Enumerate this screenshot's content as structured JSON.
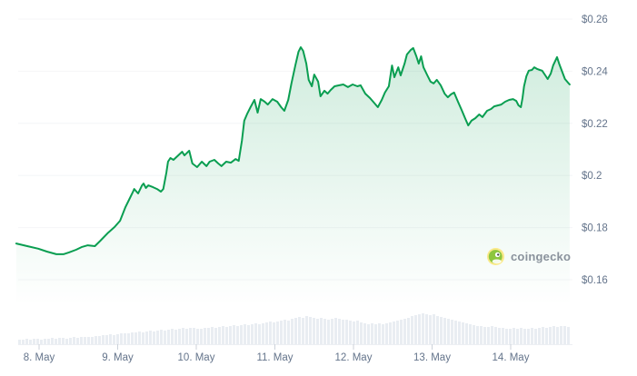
{
  "watermark": {
    "label": "coingecko"
  },
  "colors": {
    "line": "#0a9e51",
    "area_top": "rgba(10,158,81,0.20)",
    "area_bottom": "rgba(10,158,81,0.0)",
    "grid": "#f4f5f7",
    "axis_label": "#64748b",
    "volume_bar": "#e9edf2",
    "tick": "#ccd2da",
    "baseline": "#eceff3",
    "gecko_outer": "#f9e988",
    "gecko_body": "#8dc63f",
    "gecko_eye_white": "#ffffff",
    "gecko_pupil": "#404a43"
  },
  "chart_data": {
    "type": "area",
    "title": "",
    "currency": "USD",
    "legend": "none",
    "grid": "horizontal-only",
    "x_axis": {
      "tick_labels": [
        "8. May",
        "9. May",
        "10. May",
        "11. May",
        "12. May",
        "13. May",
        "14. May"
      ],
      "tick_days": [
        8,
        9,
        10,
        11,
        12,
        13,
        14
      ],
      "range_days": [
        7.71,
        14.78
      ]
    },
    "y_axis": {
      "side": "right",
      "tick_labels": [
        "$0.26",
        "$0.24",
        "$0.22",
        "$0.2",
        "$0.18",
        "$0.16"
      ],
      "tick_values": [
        0.26,
        0.24,
        0.22,
        0.2,
        0.18,
        0.16
      ],
      "range": [
        0.155,
        0.2625
      ]
    },
    "series": [
      {
        "name": "price_usd",
        "points": [
          [
            7.71,
            0.1739
          ],
          [
            7.85,
            0.1729
          ],
          [
            7.99,
            0.1719
          ],
          [
            8.1,
            0.1708
          ],
          [
            8.22,
            0.1698
          ],
          [
            8.31,
            0.1698
          ],
          [
            8.38,
            0.1705
          ],
          [
            8.47,
            0.1715
          ],
          [
            8.54,
            0.1725
          ],
          [
            8.62,
            0.1732
          ],
          [
            8.71,
            0.1729
          ],
          [
            8.78,
            0.175
          ],
          [
            8.87,
            0.1778
          ],
          [
            8.96,
            0.1802
          ],
          [
            9.03,
            0.1826
          ],
          [
            9.1,
            0.1879
          ],
          [
            9.15,
            0.191
          ],
          [
            9.19,
            0.1934
          ],
          [
            9.21,
            0.1948
          ],
          [
            9.26,
            0.1931
          ],
          [
            9.31,
            0.1962
          ],
          [
            9.33,
            0.1969
          ],
          [
            9.36,
            0.1952
          ],
          [
            9.39,
            0.1962
          ],
          [
            9.45,
            0.1955
          ],
          [
            9.5,
            0.1948
          ],
          [
            9.55,
            0.1938
          ],
          [
            9.58,
            0.1948
          ],
          [
            9.62,
            0.2011
          ],
          [
            9.64,
            0.2053
          ],
          [
            9.67,
            0.2067
          ],
          [
            9.71,
            0.206
          ],
          [
            9.76,
            0.2074
          ],
          [
            9.82,
            0.2091
          ],
          [
            9.85,
            0.2077
          ],
          [
            9.91,
            0.2095
          ],
          [
            9.95,
            0.2046
          ],
          [
            10.01,
            0.2032
          ],
          [
            10.07,
            0.2053
          ],
          [
            10.13,
            0.2036
          ],
          [
            10.17,
            0.2053
          ],
          [
            10.23,
            0.206
          ],
          [
            10.28,
            0.2046
          ],
          [
            10.32,
            0.2036
          ],
          [
            10.38,
            0.2053
          ],
          [
            10.44,
            0.2049
          ],
          [
            10.5,
            0.2063
          ],
          [
            10.54,
            0.2056
          ],
          [
            10.58,
            0.2133
          ],
          [
            10.61,
            0.221
          ],
          [
            10.65,
            0.2238
          ],
          [
            10.69,
            0.2262
          ],
          [
            10.74,
            0.229
          ],
          [
            10.78,
            0.2241
          ],
          [
            10.82,
            0.2293
          ],
          [
            10.87,
            0.2283
          ],
          [
            10.91,
            0.2272
          ],
          [
            10.97,
            0.2293
          ],
          [
            11.03,
            0.2283
          ],
          [
            11.08,
            0.2262
          ],
          [
            11.12,
            0.2248
          ],
          [
            11.17,
            0.229
          ],
          [
            11.21,
            0.2353
          ],
          [
            11.26,
            0.2422
          ],
          [
            11.3,
            0.2475
          ],
          [
            11.33,
            0.2492
          ],
          [
            11.36,
            0.2478
          ],
          [
            11.4,
            0.2429
          ],
          [
            11.43,
            0.2367
          ],
          [
            11.47,
            0.2342
          ],
          [
            11.5,
            0.2387
          ],
          [
            11.55,
            0.236
          ],
          [
            11.58,
            0.2304
          ],
          [
            11.63,
            0.2325
          ],
          [
            11.67,
            0.2314
          ],
          [
            11.71,
            0.2328
          ],
          [
            11.76,
            0.2342
          ],
          [
            11.82,
            0.2346
          ],
          [
            11.87,
            0.2349
          ],
          [
            11.93,
            0.2339
          ],
          [
            11.99,
            0.2349
          ],
          [
            12.05,
            0.2342
          ],
          [
            12.09,
            0.2346
          ],
          [
            12.15,
            0.2314
          ],
          [
            12.21,
            0.2297
          ],
          [
            12.27,
            0.2276
          ],
          [
            12.31,
            0.2262
          ],
          [
            12.36,
            0.229
          ],
          [
            12.4,
            0.2318
          ],
          [
            12.45,
            0.2342
          ],
          [
            12.49,
            0.2422
          ],
          [
            12.52,
            0.2377
          ],
          [
            12.57,
            0.2415
          ],
          [
            12.6,
            0.2384
          ],
          [
            12.65,
            0.2429
          ],
          [
            12.68,
            0.2464
          ],
          [
            12.73,
            0.2482
          ],
          [
            12.76,
            0.2489
          ],
          [
            12.8,
            0.2457
          ],
          [
            12.83,
            0.2429
          ],
          [
            12.86,
            0.2457
          ],
          [
            12.89,
            0.2415
          ],
          [
            12.94,
            0.2384
          ],
          [
            12.98,
            0.236
          ],
          [
            13.02,
            0.2353
          ],
          [
            13.06,
            0.2367
          ],
          [
            13.11,
            0.2346
          ],
          [
            13.16,
            0.2314
          ],
          [
            13.2,
            0.23
          ],
          [
            13.24,
            0.2311
          ],
          [
            13.28,
            0.2318
          ],
          [
            13.33,
            0.2283
          ],
          [
            13.38,
            0.2248
          ],
          [
            13.42,
            0.222
          ],
          [
            13.46,
            0.2192
          ],
          [
            13.5,
            0.221
          ],
          [
            13.55,
            0.222
          ],
          [
            13.6,
            0.2234
          ],
          [
            13.64,
            0.2224
          ],
          [
            13.7,
            0.2248
          ],
          [
            13.75,
            0.2255
          ],
          [
            13.79,
            0.2265
          ],
          [
            13.84,
            0.2269
          ],
          [
            13.88,
            0.2272
          ],
          [
            13.93,
            0.2283
          ],
          [
            13.98,
            0.229
          ],
          [
            14.03,
            0.2293
          ],
          [
            14.07,
            0.2286
          ],
          [
            14.1,
            0.2269
          ],
          [
            14.13,
            0.2262
          ],
          [
            14.15,
            0.2297
          ],
          [
            14.17,
            0.2342
          ],
          [
            14.2,
            0.2381
          ],
          [
            14.23,
            0.2402
          ],
          [
            14.27,
            0.2405
          ],
          [
            14.3,
            0.2415
          ],
          [
            14.34,
            0.2408
          ],
          [
            14.37,
            0.2405
          ],
          [
            14.4,
            0.2402
          ],
          [
            14.44,
            0.2384
          ],
          [
            14.47,
            0.237
          ],
          [
            14.51,
            0.2391
          ],
          [
            14.54,
            0.2422
          ],
          [
            14.59,
            0.2454
          ],
          [
            14.62,
            0.2426
          ],
          [
            14.66,
            0.2394
          ],
          [
            14.69,
            0.237
          ],
          [
            14.73,
            0.2356
          ],
          [
            14.75,
            0.2349
          ]
        ]
      }
    ],
    "volume_series": {
      "name": "volume",
      "unit": "relative",
      "values": [
        5,
        5,
        6,
        5,
        6,
        6,
        5,
        6,
        6,
        7,
        6,
        7,
        7,
        6,
        7,
        8,
        7,
        8,
        8,
        8,
        8,
        9,
        9,
        10,
        10,
        11,
        10,
        11,
        12,
        12,
        12,
        13,
        13,
        14,
        13,
        14,
        15,
        14,
        15,
        16,
        15,
        16,
        17,
        16,
        17,
        18,
        17,
        18,
        18,
        17,
        17,
        18,
        18,
        19,
        18,
        19,
        20,
        19,
        20,
        21,
        20,
        21,
        22,
        21,
        22,
        23,
        22,
        23,
        24,
        25,
        24,
        25,
        26,
        27,
        26,
        28,
        29,
        30,
        29,
        31,
        30,
        29,
        28,
        29,
        28,
        27,
        28,
        29,
        28,
        27,
        27,
        26,
        25,
        26,
        24,
        23,
        22,
        23,
        22,
        23,
        22,
        23,
        24,
        25,
        26,
        27,
        28,
        29,
        31,
        32,
        33,
        34,
        33,
        32,
        33,
        31,
        30,
        29,
        28,
        27,
        26,
        25,
        24,
        23,
        22,
        21,
        20,
        20,
        19,
        19,
        20,
        19,
        18,
        18,
        17,
        17,
        18,
        17,
        18,
        17,
        17,
        18,
        17,
        18,
        19,
        18,
        19,
        20,
        19,
        20,
        20,
        19
      ]
    }
  }
}
